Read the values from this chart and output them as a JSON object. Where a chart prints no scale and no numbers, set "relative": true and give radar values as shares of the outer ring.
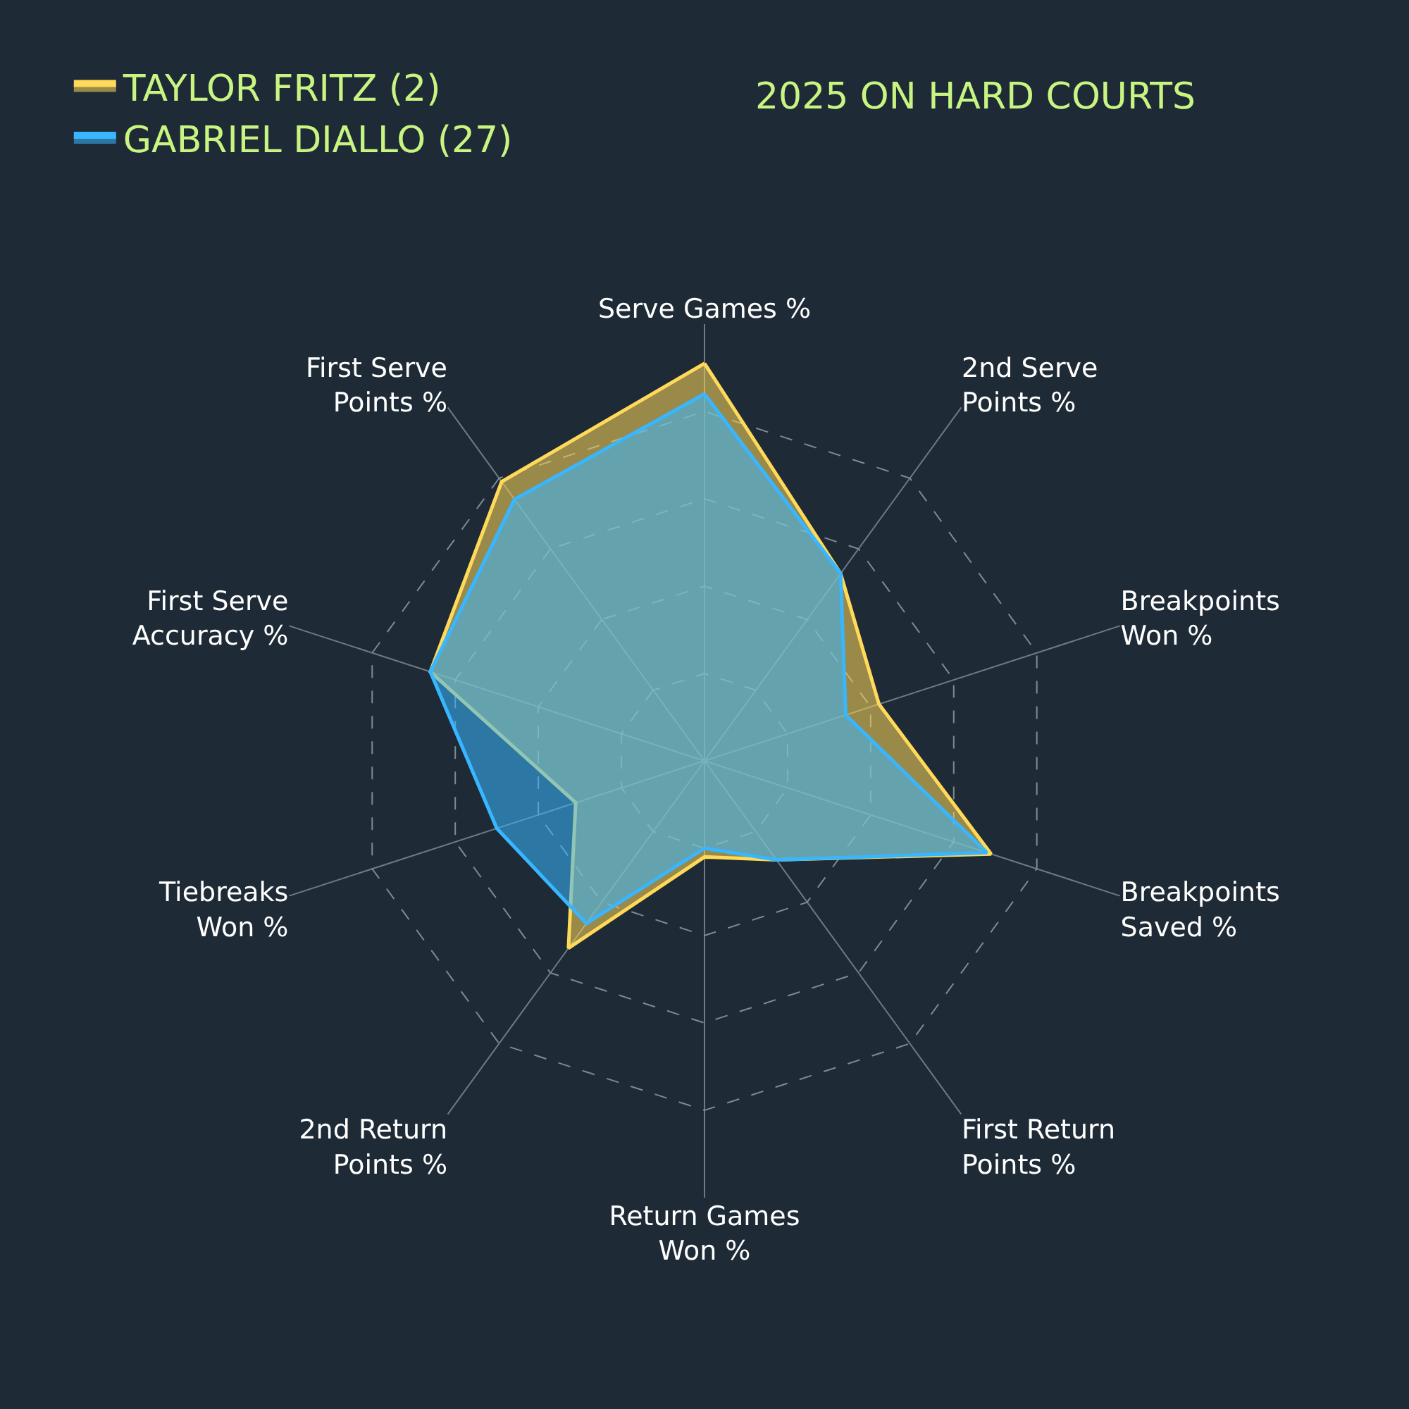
{
  "chart_data": {
    "type": "radar",
    "title": "2025 ON HARD COURTS",
    "relative": true,
    "grid": true,
    "legend": "top left",
    "marker": "none",
    "categories": [
      "Serve Games %",
      "2nd Serve\nPoints %",
      "Breakpoints\nWon %",
      "Breakpoints\nSaved %",
      "First Return\nPoints %",
      "Return Games\nWon %",
      "2nd Return\nPoints %",
      "Tiebreaks\nWon %",
      "First Serve\nAccuracy %",
      "First Serve\nPoints %"
    ],
    "series": [
      {
        "name": "TAYLOR FRITZ (2)",
        "color": "#ffd95a",
        "values": [
          0.91,
          0.53,
          0.42,
          0.69,
          0.28,
          0.22,
          0.53,
          0.31,
          0.66,
          0.79
        ]
      },
      {
        "name": "GABRIEL DIALLO (27)",
        "color": "#38b6ff",
        "values": [
          0.84,
          0.53,
          0.34,
          0.68,
          0.28,
          0.2,
          0.46,
          0.5,
          0.66,
          0.74
        ]
      }
    ]
  }
}
